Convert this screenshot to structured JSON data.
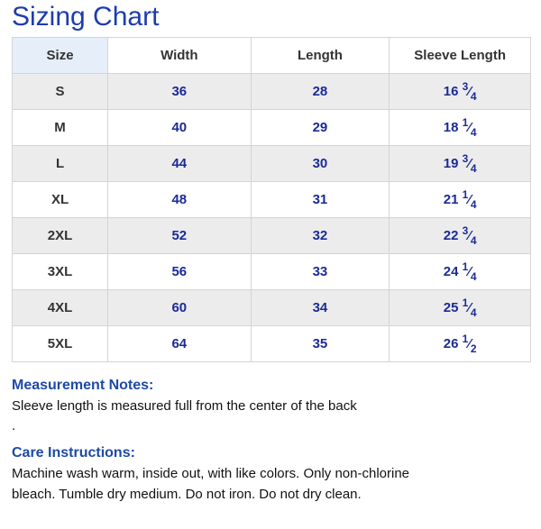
{
  "title": "Sizing Chart",
  "table": {
    "header": [
      "Size",
      "Width",
      "Length",
      "Sleeve Length"
    ],
    "rows": [
      [
        "S",
        36,
        28,
        {
          "whole": "16",
          "num": "3",
          "den": "4"
        }
      ],
      [
        "M",
        40,
        29,
        {
          "whole": "18",
          "num": "1",
          "den": "4"
        }
      ],
      [
        "L",
        44,
        30,
        {
          "whole": "19",
          "num": "3",
          "den": "4"
        }
      ],
      [
        "XL",
        48,
        31,
        {
          "whole": "21",
          "num": "1",
          "den": "4"
        }
      ],
      [
        "2XL",
        52,
        32,
        {
          "whole": "22",
          "num": "3",
          "den": "4"
        }
      ],
      [
        "3XL",
        56,
        33,
        {
          "whole": "24",
          "num": "1",
          "den": "4"
        }
      ],
      [
        "4XL",
        60,
        34,
        {
          "whole": "25",
          "num": "1",
          "den": "4"
        }
      ],
      [
        "5XL",
        64,
        35,
        {
          "whole": "26",
          "num": "1",
          "den": "2"
        }
      ]
    ]
  },
  "measurement_notes": {
    "heading": "Measurement Notes:",
    "text": "Sleeve length is measured full from the center of the back",
    "extra": "."
  },
  "care_instructions": {
    "heading": "Care Instructions:",
    "text": "Machine wash warm, inside out, with like colors. Only non-chlorine bleach. Tumble dry medium. Do not iron. Do not dry clean."
  }
}
